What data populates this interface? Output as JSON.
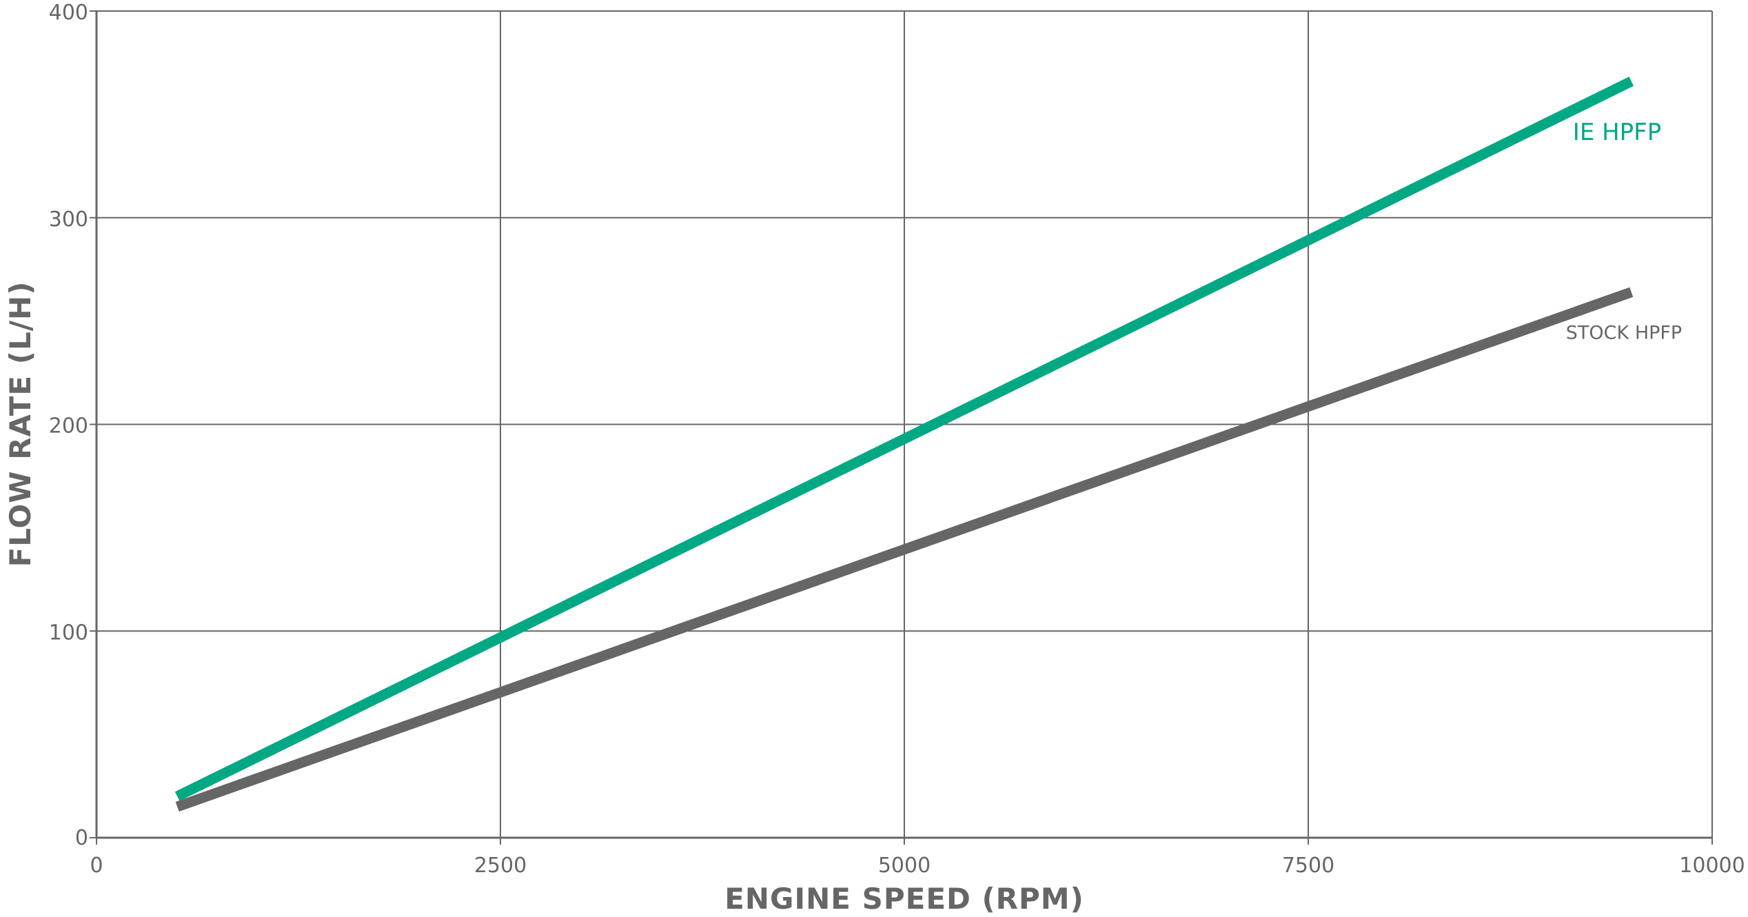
{
  "chart_data": {
    "type": "line",
    "title": "",
    "xlabel": "ENGINE SPEED (RPM)",
    "ylabel": "FLOW RATE (L/H)",
    "xlim": [
      0,
      10000
    ],
    "ylim": [
      0,
      400
    ],
    "xticks": [
      0,
      2500,
      5000,
      7500,
      10000
    ],
    "yticks": [
      0,
      100,
      200,
      300,
      400
    ],
    "xtick_labels": [
      "0",
      "2500",
      "5000",
      "7500",
      "10000"
    ],
    "ytick_labels": [
      "0",
      "100",
      "200",
      "300",
      "400"
    ],
    "grid": true,
    "series": [
      {
        "name": "IE HPFP",
        "color": "#00a884",
        "x": [
          500,
          9500
        ],
        "y": [
          20,
          366
        ]
      },
      {
        "name": "STOCK HPFP",
        "color": "#666666",
        "x": [
          500,
          9500
        ],
        "y": [
          15,
          264
        ]
      }
    ]
  }
}
